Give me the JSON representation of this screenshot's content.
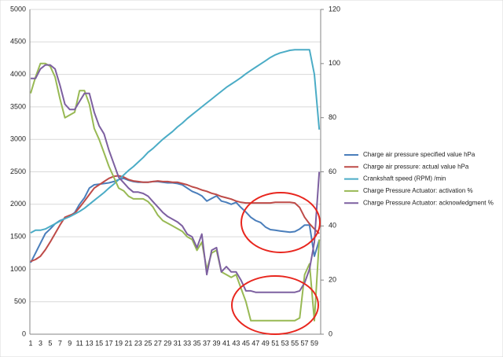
{
  "chart_data": {
    "type": "line",
    "categories": [
      1,
      null,
      3,
      null,
      5,
      null,
      7,
      null,
      9,
      null,
      11,
      null,
      13,
      null,
      15,
      null,
      17,
      null,
      19,
      null,
      21,
      null,
      23,
      null,
      25,
      null,
      27,
      null,
      29,
      null,
      31,
      null,
      33,
      null,
      35,
      null,
      37,
      null,
      39,
      null,
      41,
      null,
      43,
      null,
      45,
      null,
      47,
      null,
      49,
      null,
      51,
      null,
      53,
      null,
      55,
      null,
      57,
      null,
      59,
      null
    ],
    "ylim": [
      0,
      5000
    ],
    "yticks": [
      0,
      500,
      1000,
      1500,
      2000,
      2500,
      3000,
      3500,
      4000,
      4500,
      5000
    ],
    "y2lim": [
      0,
      120
    ],
    "y2ticks": [
      0,
      20,
      40,
      60,
      80,
      100,
      120
    ],
    "grid": true,
    "series": [
      {
        "name": "Charge air pressure specified value  hPa",
        "color": "#4a7ebb",
        "values": [
          1100,
          1250,
          1400,
          1550,
          1620,
          1700,
          1750,
          1780,
          1820,
          1870,
          2000,
          2100,
          2250,
          2300,
          2310,
          2320,
          2330,
          2350,
          2380,
          2400,
          2370,
          2350,
          2340,
          2340,
          2340,
          2350,
          2350,
          2340,
          2330,
          2330,
          2320,
          2300,
          2250,
          2200,
          2170,
          2130,
          2050,
          2090,
          2130,
          2050,
          2030,
          2000,
          2030,
          1950,
          1880,
          1800,
          1750,
          1720,
          1650,
          1610,
          1600,
          1590,
          1580,
          1570,
          1580,
          1620,
          1680,
          1680,
          1200,
          1450
        ]
      },
      {
        "name": "Charge air pressure: actual value  hPa",
        "color": "#be4b48",
        "values": [
          1120,
          1150,
          1200,
          1300,
          1420,
          1550,
          1680,
          1800,
          1830,
          1860,
          1950,
          2050,
          2150,
          2250,
          2300,
          2350,
          2400,
          2430,
          2440,
          2420,
          2380,
          2360,
          2350,
          2340,
          2340,
          2350,
          2360,
          2350,
          2350,
          2340,
          2340,
          2320,
          2300,
          2270,
          2250,
          2220,
          2200,
          2170,
          2150,
          2120,
          2100,
          2080,
          2050,
          2030,
          2020,
          2020,
          2020,
          2020,
          2020,
          2020,
          2030,
          2030,
          2030,
          2030,
          2020,
          1950,
          1800,
          1700,
          1620,
          1550
        ]
      },
      {
        "name": "Crankshaft speed (RPM)  /min",
        "color": "#4bacc6",
        "values": [
          1560,
          1600,
          1600,
          1620,
          1660,
          1700,
          1740,
          1780,
          1810,
          1850,
          1890,
          1940,
          2000,
          2060,
          2120,
          2180,
          2250,
          2310,
          2380,
          2450,
          2520,
          2580,
          2650,
          2720,
          2800,
          2860,
          2930,
          3000,
          3060,
          3120,
          3190,
          3250,
          3320,
          3380,
          3440,
          3500,
          3560,
          3620,
          3680,
          3740,
          3800,
          3850,
          3900,
          3950,
          4010,
          4060,
          4110,
          4160,
          4210,
          4260,
          4300,
          4330,
          4350,
          4370,
          4380,
          4380,
          4380,
          4380,
          4000,
          3150
        ]
      },
      {
        "name": "Charge Pressure Actuator: activation  %",
        "color": "#98b954",
        "axis": "y2",
        "values": [
          89,
          95,
          100,
          100,
          99,
          95,
          87,
          80,
          81,
          82,
          90,
          90,
          85,
          76,
          72,
          67,
          62,
          58,
          54,
          53,
          51,
          50,
          50,
          50,
          49,
          47,
          44,
          42,
          41,
          40,
          39,
          38,
          36,
          35,
          31,
          34,
          24,
          30,
          31,
          23,
          22,
          21,
          22,
          17,
          12,
          5,
          5,
          5,
          5,
          5,
          5,
          5,
          5,
          5,
          5,
          6,
          22,
          26,
          5,
          35
        ]
      },
      {
        "name": "Charge Pressure Actuator: acknowledgment  %",
        "color": "#7d60a0",
        "axis": "y2",
        "values": [
          94.5,
          94.5,
          98,
          99.5,
          99.5,
          98,
          92,
          85,
          83,
          83,
          86,
          89,
          89,
          82,
          77,
          74,
          68,
          63,
          58,
          56,
          54,
          52.5,
          52.5,
          52,
          51,
          49,
          47,
          45,
          43.5,
          42.5,
          41.5,
          40,
          37,
          36,
          32,
          37,
          22,
          31,
          32,
          23,
          25,
          23,
          23,
          20,
          16,
          16,
          15.5,
          15.5,
          15.5,
          15.5,
          15.5,
          15.5,
          15.5,
          15.5,
          15.5,
          16,
          19,
          24,
          34,
          60
        ]
      }
    ]
  }
}
